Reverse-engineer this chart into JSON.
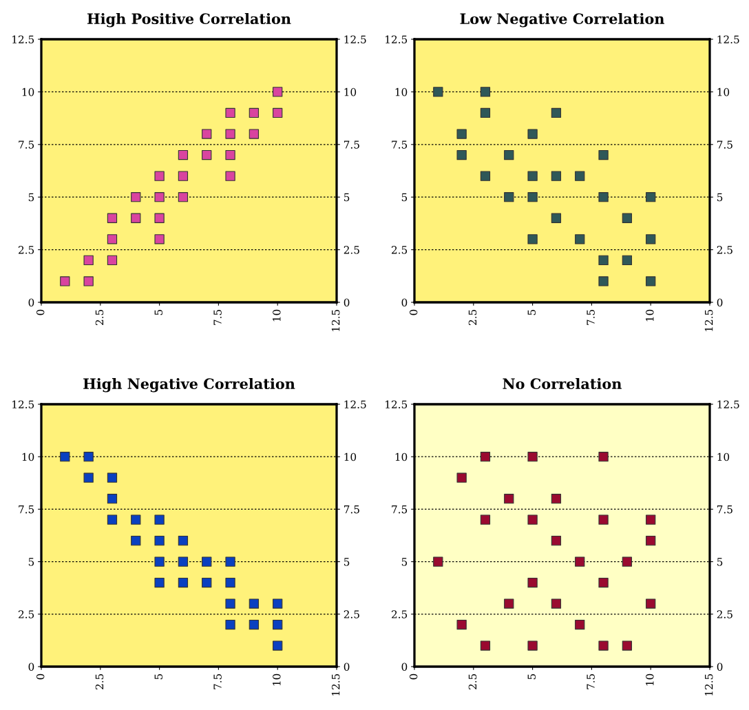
{
  "chart_data": [
    {
      "type": "scatter",
      "title": "High Positive Correlation",
      "xlim": [
        0,
        12.5
      ],
      "xticks": [
        0,
        2.5,
        5,
        7.5,
        10,
        12.5
      ],
      "ylim": [
        0,
        12.5
      ],
      "yticks": [
        0,
        2.5,
        5,
        7.5,
        10,
        12.5
      ],
      "y2lim": [
        0,
        12.5
      ],
      "y2ticks": [
        0,
        2.5,
        5,
        7.5,
        10,
        12.5
      ],
      "grid": "y",
      "marker": "square",
      "series": [
        {
          "color": "#d9449f",
          "x": [
            1,
            2,
            2,
            3,
            3,
            3,
            4,
            4,
            5,
            5,
            5,
            5,
            6,
            6,
            6,
            7,
            7,
            8,
            8,
            8,
            8,
            9,
            9,
            10,
            10
          ],
          "values": [
            1,
            1,
            2,
            2,
            3,
            4,
            4,
            5,
            3,
            4,
            5,
            6,
            5,
            6,
            7,
            7,
            8,
            6,
            7,
            8,
            9,
            8,
            9,
            9,
            10
          ]
        }
      ]
    },
    {
      "type": "scatter",
      "title": "Low Negative Correlation",
      "xlim": [
        0,
        12.5
      ],
      "xticks": [
        0,
        2.5,
        5,
        7.5,
        10,
        12.5
      ],
      "ylim": [
        0,
        12.5
      ],
      "yticks": [
        0,
        2.5,
        5,
        7.5,
        10,
        12.5
      ],
      "y2lim": [
        0,
        12.5
      ],
      "y2ticks": [
        0,
        2.5,
        5,
        7.5,
        10,
        12.5
      ],
      "grid": "y",
      "marker": "square",
      "series": [
        {
          "color": "#2f5858",
          "x": [
            1,
            3,
            3,
            6,
            2,
            5,
            2,
            4,
            8,
            3,
            5,
            6,
            7,
            4,
            5,
            8,
            10,
            6,
            9,
            5,
            7,
            10,
            8,
            9,
            8,
            10
          ],
          "values": [
            10,
            10,
            9,
            9,
            8,
            8,
            7,
            7,
            7,
            6,
            6,
            6,
            6,
            5,
            5,
            5,
            5,
            4,
            4,
            3,
            3,
            3,
            2,
            2,
            1,
            1
          ]
        }
      ]
    },
    {
      "type": "scatter",
      "title": "High Negative Correlation",
      "xlim": [
        0,
        12.5
      ],
      "xticks": [
        0,
        2.5,
        5,
        7.5,
        10,
        12.5
      ],
      "ylim": [
        0,
        12.5
      ],
      "yticks": [
        0,
        2.5,
        5,
        7.5,
        10,
        12.5
      ],
      "y2lim": [
        0,
        12.5
      ],
      "y2ticks": [
        0,
        2.5,
        5,
        7.5,
        10,
        12.5
      ],
      "grid": "y",
      "marker": "square",
      "series": [
        {
          "color": "#0a40c0",
          "x": [
            1,
            2,
            2,
            3,
            3,
            3,
            4,
            5,
            4,
            5,
            6,
            5,
            6,
            7,
            8,
            5,
            6,
            7,
            8,
            8,
            9,
            10,
            8,
            9,
            10,
            10
          ],
          "values": [
            10,
            10,
            9,
            9,
            8,
            7,
            7,
            7,
            6,
            6,
            6,
            5,
            5,
            5,
            5,
            4,
            4,
            4,
            4,
            3,
            3,
            3,
            2,
            2,
            2,
            1
          ]
        }
      ]
    },
    {
      "type": "scatter",
      "title": "No Correlation",
      "xlim": [
        0,
        12.5
      ],
      "xticks": [
        0,
        2.5,
        5,
        7.5,
        10,
        12.5
      ],
      "ylim": [
        0,
        12.5
      ],
      "yticks": [
        0,
        2.5,
        5,
        7.5,
        10,
        12.5
      ],
      "y2lim": [
        0,
        12.5
      ],
      "y2ticks": [
        0,
        2.5,
        5,
        7.5,
        10,
        12.5
      ],
      "grid": "y",
      "marker": "square",
      "series": [
        {
          "color": "#9a0a30",
          "x": [
            3,
            5,
            8,
            2,
            4,
            6,
            3,
            5,
            8,
            10,
            6,
            10,
            1,
            7,
            9,
            5,
            8,
            4,
            6,
            10,
            2,
            7,
            3,
            5,
            8,
            9
          ],
          "values": [
            10,
            10,
            10,
            9,
            8,
            8,
            7,
            7,
            7,
            7,
            6,
            6,
            5,
            5,
            5,
            4,
            4,
            3,
            3,
            3,
            2,
            2,
            1,
            1,
            1,
            1
          ]
        }
      ]
    }
  ]
}
